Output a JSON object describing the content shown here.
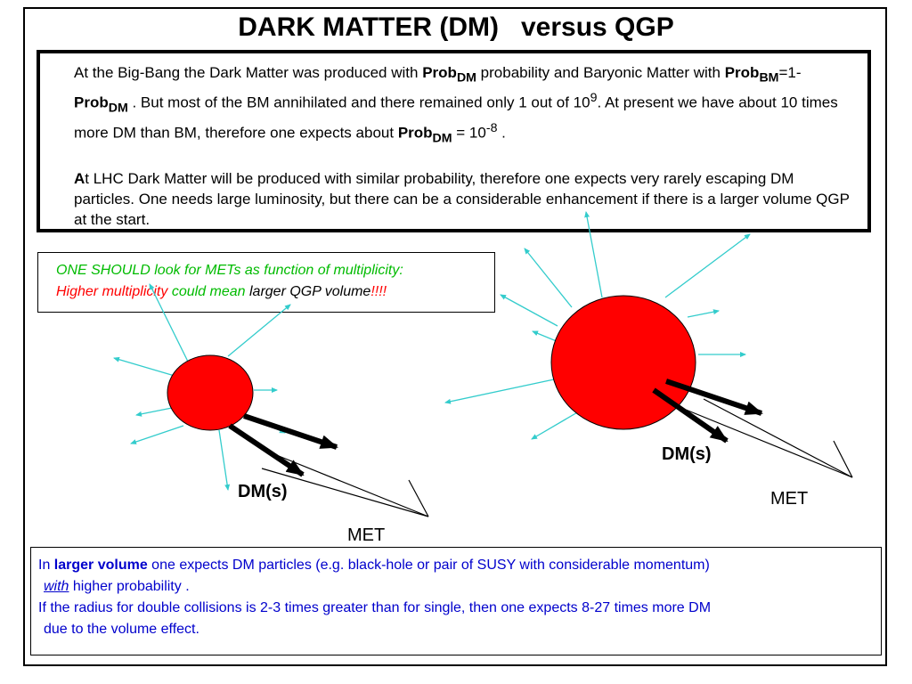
{
  "title": "DARK MATTER (DM)   versus QGP",
  "intro": {
    "p1_a": "At the Big-Bang the Dark Matter was produced with ",
    "prob": "Prob",
    "sub_dm": "DM",
    "sub_bm": "BM",
    "p1_b": " probability and Baryonic Matter with ",
    "p1_c": "=1- ",
    "p1_d": " . But most of the BM annihilated and there remained only 1 out of 10",
    "exp9": "9",
    "p1_e": ".     At present we have about 10 times more DM than BM, therefore one expects about ",
    "p1_f": " = 10",
    "exp_m8": "-8",
    "p1_g": " .",
    "p2_a": "A",
    "p2_b": "t LHC Dark Matter will be produced with similar probability, therefore one expects very rarely escaping DM particles. One needs large luminosity, but there can be a considerable enhancement if there is a larger volume QGP at the start."
  },
  "hint": {
    "line1": "ONE SHOULD look for METs as function of multiplicity:",
    "l2_a": "Higher multiplicity",
    "l2_b": " could mean ",
    "l2_c": "larger QGP volume",
    "l2_d": "!!!!"
  },
  "diagram": {
    "dm_label": "DM(s)",
    "met_label": "MET",
    "colors": {
      "fireball": "#ff0000",
      "rays": "#33cccc",
      "arrow": "#000000"
    }
  },
  "conclusion": {
    "l1_a": "In ",
    "l1_b": "larger volume",
    "l1_c": " one expects  DM particles (e.g. black-hole or pair of SUSY with  considerable momentum)",
    "l2_a": "with",
    "l2_b": " higher probability .",
    "l3": "If the radius for double collisions is 2-3 times greater than for single, then one expects 8-27 times more DM",
    "l4": "due to the volume effect."
  }
}
